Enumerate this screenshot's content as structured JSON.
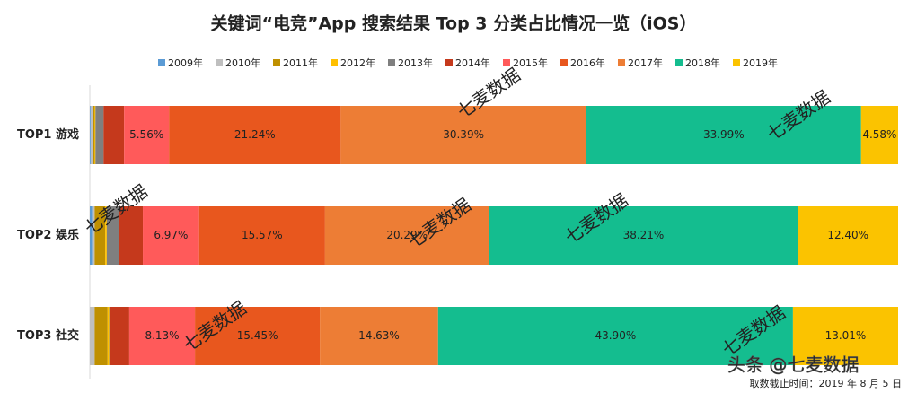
{
  "chart_data": {
    "type": "stacked-barh",
    "title": "关键词“电竞”App 搜索结果 Top 3 分类占比情况一览（iOS）",
    "categories": [
      "TOP1 游戏",
      "TOP2 娱乐",
      "TOP3 社交"
    ],
    "xlim": [
      0,
      100
    ],
    "series": [
      {
        "name": "2009年",
        "color": "#5b9bd5",
        "values": [
          0.1,
          0.3,
          0
        ],
        "value_labels": [
          null,
          null,
          null
        ]
      },
      {
        "name": "2010年",
        "color": "#bfbfbf",
        "values": [
          0.3,
          0.3,
          0.6
        ],
        "value_labels": [
          null,
          null,
          null
        ]
      },
      {
        "name": "2011年",
        "color": "#bf9000",
        "values": [
          0.2,
          1.3,
          1.6
        ],
        "value_labels": [
          null,
          null,
          null
        ]
      },
      {
        "name": "2012年",
        "color": "#ffc000",
        "values": [
          0.1,
          0.2,
          0.2
        ],
        "value_labels": [
          null,
          null,
          null
        ]
      },
      {
        "name": "2013年",
        "color": "#7f7f7f",
        "values": [
          1.0,
          1.5,
          0.1
        ],
        "value_labels": [
          null,
          null,
          null
        ]
      },
      {
        "name": "2014年",
        "color": "#c5391c",
        "values": [
          2.54,
          2.96,
          2.38
        ],
        "value_labels": [
          null,
          null,
          null
        ]
      },
      {
        "name": "2015年",
        "color": "#ff5a5a",
        "values": [
          5.56,
          6.97,
          8.13
        ],
        "value_labels": [
          "5.56%",
          "6.97%",
          "8.13%"
        ]
      },
      {
        "name": "2016年",
        "color": "#e8571e",
        "values": [
          21.24,
          15.57,
          15.45
        ],
        "value_labels": [
          "21.24%",
          "15.57%",
          "15.45%"
        ]
      },
      {
        "name": "2017年",
        "color": "#ed7d35",
        "values": [
          30.39,
          20.29,
          14.63
        ],
        "value_labels": [
          "30.39%",
          "20.29%",
          "14.63%"
        ]
      },
      {
        "name": "2018年",
        "color": "#14bd8f",
        "values": [
          33.99,
          38.21,
          43.9
        ],
        "value_labels": [
          "33.99%",
          "38.21%",
          "43.90%"
        ]
      },
      {
        "name": "2019年",
        "color": "#fbc300",
        "values": [
          4.58,
          12.4,
          13.01
        ],
        "value_labels": [
          "4.58%",
          "12.40%",
          "13.01%"
        ]
      }
    ],
    "watermark": "七麦数据",
    "source_tag": "头条 @七麦数据",
    "footnote": "取数截止时间：2019 年 8 月 5 日"
  }
}
